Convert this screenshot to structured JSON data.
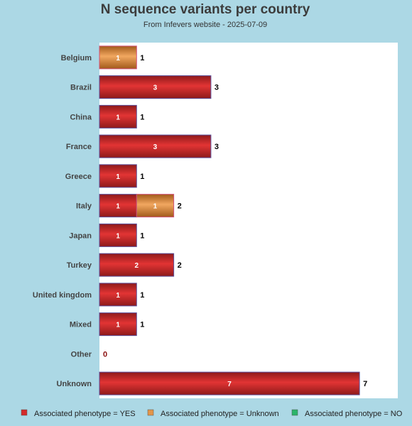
{
  "chart_data": {
    "type": "bar",
    "orientation": "horizontal",
    "stacked": true,
    "title": "N sequence variants per country",
    "subtitle": "From Infevers website - 2025-07-09",
    "xlabel": "",
    "ylabel": "",
    "xlim": [
      0,
      8
    ],
    "grid": false,
    "legend_position": "bottom",
    "categories": [
      "Belgium",
      "Brazil",
      "China",
      "France",
      "Greece",
      "Italy",
      "Japan",
      "Turkey",
      "United kingdom",
      "Mixed",
      "Other",
      "Unknown"
    ],
    "series": [
      {
        "name": "Associated phenotype = YES",
        "color": "#d42a2a",
        "values": [
          0,
          3,
          1,
          3,
          1,
          1,
          1,
          2,
          1,
          1,
          0,
          7
        ]
      },
      {
        "name": "Associated phenotype = Unknown",
        "color": "#e3964a",
        "values": [
          1,
          0,
          0,
          0,
          0,
          1,
          0,
          0,
          0,
          0,
          0,
          0
        ]
      },
      {
        "name": "Associated phenotype = NO",
        "color": "#2bb56a",
        "values": [
          0,
          0,
          0,
          0,
          0,
          0,
          0,
          0,
          0,
          0,
          0,
          0
        ]
      }
    ],
    "totals": [
      1,
      3,
      1,
      3,
      1,
      2,
      1,
      2,
      1,
      1,
      0,
      7
    ]
  }
}
